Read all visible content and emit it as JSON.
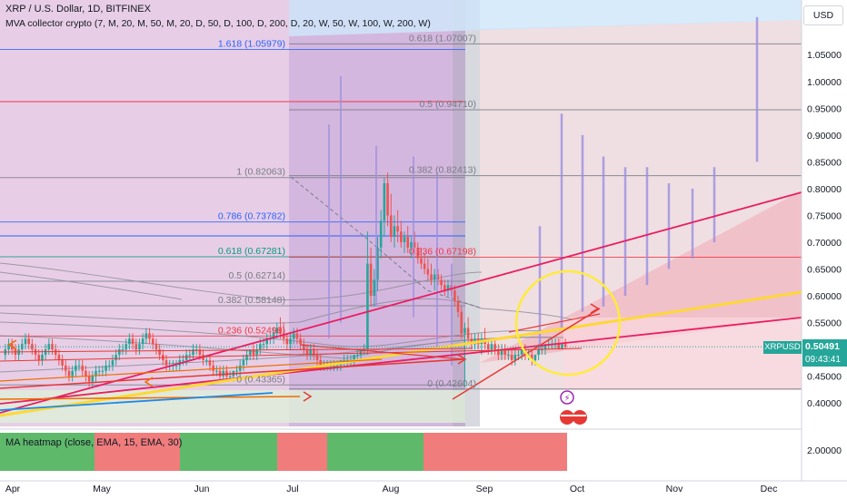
{
  "header": {
    "title": "XRP / U.S. Dollar, 1D, BITFINEX",
    "indicator": "MVA collector crypto (7, M, 20, M, 50, M, 20, D, 50, D, 100, D, 200, D, 20, W, 50, W, 100, W, 200, W)"
  },
  "currency_button": "USD",
  "heatmap_label": "MA heatmap (close, EMA, 15, EMA, 30)",
  "heatmap_tick": "2.00000",
  "price_badge": {
    "symbol": "XRPUSD",
    "price": "0.50491",
    "countdown": "09:43:41"
  },
  "colors": {
    "up": "#26a69a",
    "down": "#ef5350",
    "fib_red": "#f23645",
    "yellow": "#ffeb3b",
    "heat_green": "#5fb96b",
    "heat_red": "#f07c7c"
  },
  "chart_data": {
    "type": "candlestick",
    "symbol": "XRPUSD",
    "timeframe": "1D",
    "exchange": "BITFINEX",
    "x_ticks": [
      "Apr",
      "May",
      "Jun",
      "Jul",
      "Aug",
      "Sep",
      "Oct",
      "Nov",
      "Dec"
    ],
    "y_ticks": [
      "1.05000",
      "1.00000",
      "0.95000",
      "0.90000",
      "0.85000",
      "0.80000",
      "0.75000",
      "0.70000",
      "0.65000",
      "0.60000",
      "0.55000",
      "0.50000",
      "0.45000",
      "0.40000"
    ],
    "ylim": [
      0.38,
      1.12
    ],
    "last_price": 0.50491,
    "fib_left": [
      {
        "label": "1.618 (1.05979)",
        "value": 1.05979
      },
      {
        "label": "1 (0.82063)",
        "value": 0.82063
      },
      {
        "label": "0.786 (0.73782)",
        "value": 0.73782
      },
      {
        "label": "0.618 (0.67281)",
        "value": 0.67281
      },
      {
        "label": "0.5 (0.62714)",
        "value": 0.62714
      },
      {
        "label": "0.382 (0.58148)",
        "value": 0.58148
      },
      {
        "label": "0.236 (0.52498)",
        "value": 0.52498
      },
      {
        "label": "0 (0.43365)",
        "value": 0.43365
      }
    ],
    "fib_right": [
      {
        "label": "0.618 (1.07007)",
        "value": 1.07007
      },
      {
        "label": "0.5 (0.94710)",
        "value": 0.9471
      },
      {
        "label": "0.382 (0.82413)",
        "value": 0.82413
      },
      {
        "label": "0.236 (0.67198)",
        "value": 0.67198
      },
      {
        "label": "0 (0.42604)",
        "value": 0.42604
      }
    ],
    "heatmap": [
      "green",
      "red",
      "green",
      "red",
      "green",
      "red"
    ],
    "candles": [
      [
        0.49,
        0.51,
        0.48,
        0.5
      ],
      [
        0.5,
        0.52,
        0.49,
        0.51
      ],
      [
        0.51,
        0.52,
        0.49,
        0.5
      ],
      [
        0.5,
        0.51,
        0.48,
        0.49
      ],
      [
        0.49,
        0.51,
        0.48,
        0.5
      ],
      [
        0.5,
        0.52,
        0.49,
        0.51
      ],
      [
        0.51,
        0.53,
        0.5,
        0.52
      ],
      [
        0.52,
        0.53,
        0.5,
        0.51
      ],
      [
        0.51,
        0.52,
        0.49,
        0.5
      ],
      [
        0.5,
        0.51,
        0.48,
        0.49
      ],
      [
        0.49,
        0.5,
        0.47,
        0.48
      ],
      [
        0.48,
        0.5,
        0.47,
        0.49
      ],
      [
        0.49,
        0.51,
        0.48,
        0.5
      ],
      [
        0.5,
        0.52,
        0.49,
        0.51
      ],
      [
        0.51,
        0.52,
        0.49,
        0.5
      ],
      [
        0.5,
        0.51,
        0.48,
        0.49
      ],
      [
        0.49,
        0.5,
        0.47,
        0.48
      ],
      [
        0.48,
        0.49,
        0.46,
        0.47
      ],
      [
        0.47,
        0.48,
        0.45,
        0.46
      ],
      [
        0.46,
        0.47,
        0.44,
        0.45
      ],
      [
        0.45,
        0.47,
        0.44,
        0.46
      ],
      [
        0.46,
        0.48,
        0.45,
        0.47
      ],
      [
        0.47,
        0.48,
        0.46,
        0.47
      ],
      [
        0.47,
        0.48,
        0.45,
        0.46
      ],
      [
        0.46,
        0.47,
        0.44,
        0.45
      ],
      [
        0.45,
        0.46,
        0.43,
        0.44
      ],
      [
        0.44,
        0.46,
        0.43,
        0.45
      ],
      [
        0.45,
        0.47,
        0.44,
        0.46
      ],
      [
        0.46,
        0.47,
        0.45,
        0.46
      ],
      [
        0.46,
        0.47,
        0.45,
        0.46
      ],
      [
        0.46,
        0.48,
        0.45,
        0.47
      ],
      [
        0.47,
        0.48,
        0.46,
        0.47
      ],
      [
        0.47,
        0.49,
        0.46,
        0.48
      ],
      [
        0.48,
        0.5,
        0.47,
        0.49
      ],
      [
        0.49,
        0.51,
        0.48,
        0.5
      ],
      [
        0.5,
        0.51,
        0.49,
        0.5
      ],
      [
        0.5,
        0.52,
        0.49,
        0.51
      ],
      [
        0.51,
        0.53,
        0.5,
        0.52
      ],
      [
        0.52,
        0.53,
        0.5,
        0.51
      ],
      [
        0.51,
        0.52,
        0.49,
        0.5
      ],
      [
        0.5,
        0.52,
        0.49,
        0.51
      ],
      [
        0.51,
        0.53,
        0.5,
        0.52
      ],
      [
        0.52,
        0.54,
        0.51,
        0.53
      ],
      [
        0.53,
        0.54,
        0.51,
        0.52
      ],
      [
        0.52,
        0.53,
        0.5,
        0.51
      ],
      [
        0.51,
        0.52,
        0.49,
        0.5
      ],
      [
        0.5,
        0.51,
        0.48,
        0.49
      ],
      [
        0.49,
        0.5,
        0.47,
        0.48
      ],
      [
        0.48,
        0.49,
        0.46,
        0.47
      ],
      [
        0.47,
        0.48,
        0.46,
        0.47
      ],
      [
        0.47,
        0.48,
        0.46,
        0.47
      ],
      [
        0.47,
        0.48,
        0.46,
        0.47
      ],
      [
        0.47,
        0.49,
        0.46,
        0.48
      ],
      [
        0.48,
        0.49,
        0.47,
        0.48
      ],
      [
        0.48,
        0.5,
        0.47,
        0.49
      ],
      [
        0.49,
        0.5,
        0.48,
        0.49
      ],
      [
        0.49,
        0.51,
        0.48,
        0.5
      ],
      [
        0.5,
        0.51,
        0.49,
        0.5
      ],
      [
        0.5,
        0.51,
        0.48,
        0.49
      ],
      [
        0.49,
        0.5,
        0.47,
        0.48
      ],
      [
        0.48,
        0.49,
        0.47,
        0.48
      ],
      [
        0.48,
        0.49,
        0.46,
        0.47
      ],
      [
        0.47,
        0.48,
        0.45,
        0.46
      ],
      [
        0.46,
        0.47,
        0.45,
        0.46
      ],
      [
        0.46,
        0.47,
        0.44,
        0.45
      ],
      [
        0.45,
        0.47,
        0.44,
        0.46
      ],
      [
        0.46,
        0.47,
        0.44,
        0.45
      ],
      [
        0.45,
        0.46,
        0.44,
        0.45
      ],
      [
        0.45,
        0.46,
        0.44,
        0.46
      ],
      [
        0.46,
        0.47,
        0.45,
        0.46
      ],
      [
        0.46,
        0.48,
        0.45,
        0.47
      ],
      [
        0.47,
        0.49,
        0.46,
        0.48
      ],
      [
        0.48,
        0.5,
        0.47,
        0.49
      ],
      [
        0.49,
        0.5,
        0.48,
        0.5
      ],
      [
        0.5,
        0.51,
        0.48,
        0.49
      ],
      [
        0.49,
        0.51,
        0.48,
        0.5
      ],
      [
        0.5,
        0.52,
        0.49,
        0.51
      ],
      [
        0.51,
        0.52,
        0.5,
        0.51
      ],
      [
        0.51,
        0.53,
        0.5,
        0.52
      ],
      [
        0.52,
        0.53,
        0.51,
        0.52
      ],
      [
        0.52,
        0.54,
        0.51,
        0.53
      ],
      [
        0.53,
        0.55,
        0.52,
        0.54
      ],
      [
        0.54,
        0.56,
        0.52,
        0.53
      ],
      [
        0.53,
        0.55,
        0.51,
        0.52
      ],
      [
        0.52,
        0.53,
        0.5,
        0.51
      ],
      [
        0.51,
        0.53,
        0.5,
        0.52
      ],
      [
        0.52,
        0.54,
        0.51,
        0.53
      ],
      [
        0.53,
        0.54,
        0.51,
        0.52
      ],
      [
        0.52,
        0.53,
        0.5,
        0.51
      ],
      [
        0.51,
        0.52,
        0.49,
        0.5
      ],
      [
        0.5,
        0.51,
        0.48,
        0.49
      ],
      [
        0.49,
        0.51,
        0.48,
        0.5
      ],
      [
        0.5,
        0.51,
        0.48,
        0.49
      ],
      [
        0.49,
        0.5,
        0.47,
        0.48
      ],
      [
        0.48,
        0.49,
        0.46,
        0.47
      ],
      [
        0.47,
        0.48,
        0.46,
        0.47
      ],
      [
        0.47,
        0.48,
        0.46,
        0.47
      ],
      [
        0.47,
        0.48,
        0.46,
        0.47
      ],
      [
        0.47,
        0.48,
        0.46,
        0.47
      ],
      [
        0.47,
        0.48,
        0.46,
        0.47
      ],
      [
        0.47,
        0.48,
        0.46,
        0.48
      ],
      [
        0.48,
        0.49,
        0.47,
        0.48
      ],
      [
        0.48,
        0.49,
        0.47,
        0.48
      ],
      [
        0.48,
        0.49,
        0.47,
        0.48
      ],
      [
        0.48,
        0.49,
        0.47,
        0.49
      ],
      [
        0.49,
        0.5,
        0.48,
        0.49
      ],
      [
        0.49,
        0.5,
        0.48,
        0.5
      ],
      [
        0.5,
        0.51,
        0.49,
        0.5
      ],
      [
        0.5,
        0.72,
        0.49,
        0.66
      ],
      [
        0.66,
        0.69,
        0.58,
        0.6
      ],
      [
        0.6,
        0.65,
        0.58,
        0.63
      ],
      [
        0.63,
        0.71,
        0.61,
        0.69
      ],
      [
        0.69,
        0.76,
        0.67,
        0.74
      ],
      [
        0.74,
        0.82,
        0.71,
        0.81
      ],
      [
        0.81,
        0.83,
        0.73,
        0.75
      ],
      [
        0.75,
        0.79,
        0.7,
        0.71
      ],
      [
        0.71,
        0.75,
        0.69,
        0.73
      ],
      [
        0.73,
        0.76,
        0.7,
        0.72
      ],
      [
        0.72,
        0.74,
        0.69,
        0.7
      ],
      [
        0.7,
        0.72,
        0.68,
        0.71
      ],
      [
        0.71,
        0.73,
        0.68,
        0.69
      ],
      [
        0.69,
        0.71,
        0.67,
        0.7
      ],
      [
        0.7,
        0.72,
        0.68,
        0.69
      ],
      [
        0.69,
        0.7,
        0.66,
        0.67
      ],
      [
        0.67,
        0.69,
        0.65,
        0.66
      ],
      [
        0.66,
        0.68,
        0.64,
        0.65
      ],
      [
        0.65,
        0.67,
        0.63,
        0.64
      ],
      [
        0.64,
        0.66,
        0.62,
        0.63
      ],
      [
        0.63,
        0.65,
        0.61,
        0.64
      ],
      [
        0.64,
        0.65,
        0.62,
        0.63
      ],
      [
        0.63,
        0.64,
        0.61,
        0.62
      ],
      [
        0.62,
        0.63,
        0.6,
        0.61
      ],
      [
        0.61,
        0.63,
        0.6,
        0.62
      ],
      [
        0.62,
        0.63,
        0.6,
        0.61
      ],
      [
        0.61,
        0.62,
        0.58,
        0.59
      ],
      [
        0.59,
        0.6,
        0.56,
        0.57
      ],
      [
        0.57,
        0.58,
        0.52,
        0.53
      ],
      [
        0.53,
        0.55,
        0.43,
        0.54
      ],
      [
        0.54,
        0.56,
        0.51,
        0.52
      ],
      [
        0.52,
        0.53,
        0.5,
        0.51
      ],
      [
        0.51,
        0.53,
        0.5,
        0.52
      ],
      [
        0.52,
        0.53,
        0.5,
        0.51
      ],
      [
        0.51,
        0.53,
        0.49,
        0.52
      ],
      [
        0.52,
        0.54,
        0.5,
        0.51
      ],
      [
        0.51,
        0.52,
        0.49,
        0.5
      ],
      [
        0.5,
        0.52,
        0.49,
        0.51
      ],
      [
        0.51,
        0.52,
        0.49,
        0.5
      ],
      [
        0.5,
        0.51,
        0.48,
        0.49
      ],
      [
        0.49,
        0.51,
        0.48,
        0.5
      ],
      [
        0.5,
        0.51,
        0.48,
        0.49
      ],
      [
        0.49,
        0.5,
        0.48,
        0.49
      ],
      [
        0.49,
        0.5,
        0.47,
        0.48
      ],
      [
        0.48,
        0.5,
        0.47,
        0.49
      ],
      [
        0.49,
        0.5,
        0.48,
        0.49
      ],
      [
        0.49,
        0.5,
        0.48,
        0.5
      ],
      [
        0.5,
        0.51,
        0.48,
        0.49
      ],
      [
        0.49,
        0.5,
        0.48,
        0.49
      ],
      [
        0.49,
        0.5,
        0.47,
        0.48
      ],
      [
        0.48,
        0.49,
        0.47,
        0.49
      ],
      [
        0.49,
        0.51,
        0.48,
        0.5
      ],
      [
        0.5,
        0.51,
        0.49,
        0.5
      ],
      [
        0.5,
        0.51,
        0.49,
        0.51
      ],
      [
        0.51,
        0.52,
        0.5,
        0.51
      ],
      [
        0.51,
        0.52,
        0.5,
        0.51
      ],
      [
        0.51,
        0.52,
        0.5,
        0.51
      ],
      [
        0.51,
        0.52,
        0.5,
        0.5
      ],
      [
        0.5,
        0.51,
        0.5,
        0.51
      ],
      [
        0.51,
        0.52,
        0.5,
        0.505
      ]
    ],
    "projections": [
      [
        0.5,
        0.73
      ],
      [
        0.54,
        0.94
      ],
      [
        0.57,
        0.9
      ],
      [
        0.58,
        0.86
      ],
      [
        0.6,
        0.84
      ],
      [
        0.62,
        0.84
      ],
      [
        0.65,
        0.81
      ],
      [
        0.67,
        0.8
      ],
      [
        0.7,
        0.84
      ],
      [
        0.85,
        1.12
      ]
    ]
  }
}
